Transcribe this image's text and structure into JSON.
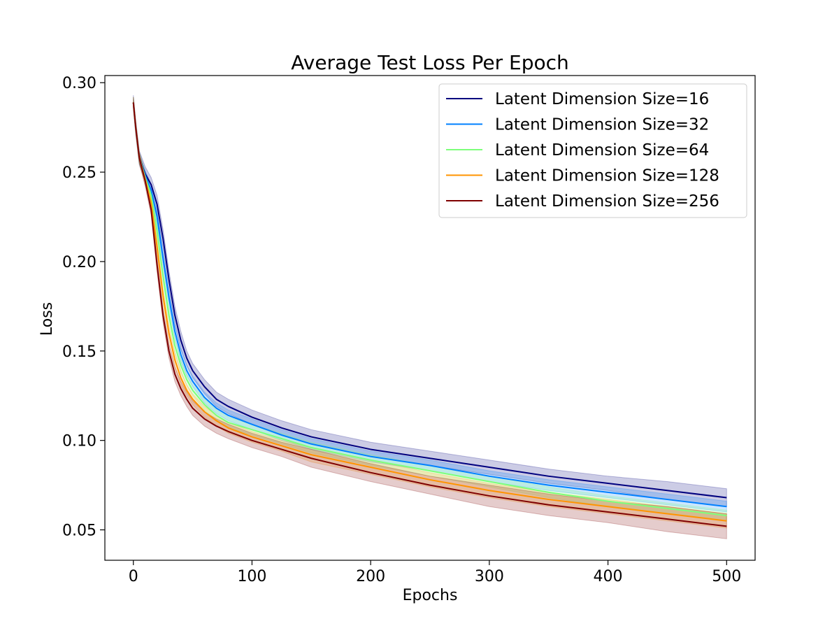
{
  "chart_data": {
    "type": "line",
    "title": "Average Test Loss Per Epoch",
    "xlabel": "Epochs",
    "ylabel": "Loss",
    "xlim": [
      -24,
      524
    ],
    "ylim": [
      0.033,
      0.304
    ],
    "xticks": [
      0,
      100,
      200,
      300,
      400,
      500
    ],
    "xtick_labels": [
      "0",
      "100",
      "200",
      "300",
      "400",
      "500"
    ],
    "yticks": [
      0.05,
      0.1,
      0.15,
      0.2,
      0.25,
      0.3
    ],
    "ytick_labels": [
      "0.05",
      "0.10",
      "0.15",
      "0.20",
      "0.25",
      "0.30"
    ],
    "grid": false,
    "legend_position": "top-right",
    "band": "shaded ±1 std region around each mean line",
    "x": [
      0,
      2,
      5,
      10,
      15,
      20,
      25,
      30,
      35,
      40,
      45,
      50,
      60,
      70,
      80,
      100,
      125,
      150,
      200,
      250,
      300,
      350,
      400,
      450,
      500
    ],
    "series": [
      {
        "name": "Latent Dimension Size=16",
        "color": "#00007f",
        "values": [
          0.289,
          0.275,
          0.258,
          0.249,
          0.243,
          0.232,
          0.213,
          0.19,
          0.17,
          0.156,
          0.146,
          0.139,
          0.13,
          0.123,
          0.119,
          0.113,
          0.107,
          0.102,
          0.095,
          0.09,
          0.085,
          0.08,
          0.076,
          0.072,
          0.068
        ],
        "band": [
          0.004,
          0.004,
          0.004,
          0.004,
          0.004,
          0.005,
          0.005,
          0.005,
          0.005,
          0.005,
          0.004,
          0.004,
          0.004,
          0.004,
          0.004,
          0.004,
          0.004,
          0.004,
          0.004,
          0.004,
          0.004,
          0.004,
          0.004,
          0.005,
          0.005
        ]
      },
      {
        "name": "Latent Dimension Size=32",
        "color": "#0080ff",
        "values": [
          0.289,
          0.275,
          0.258,
          0.248,
          0.24,
          0.225,
          0.202,
          0.18,
          0.161,
          0.148,
          0.139,
          0.133,
          0.124,
          0.118,
          0.114,
          0.109,
          0.103,
          0.098,
          0.091,
          0.086,
          0.08,
          0.075,
          0.071,
          0.067,
          0.063
        ],
        "band": [
          0.003,
          0.003,
          0.003,
          0.003,
          0.003,
          0.004,
          0.004,
          0.004,
          0.004,
          0.004,
          0.003,
          0.003,
          0.003,
          0.003,
          0.003,
          0.003,
          0.003,
          0.003,
          0.003,
          0.003,
          0.003,
          0.003,
          0.003,
          0.003,
          0.003
        ]
      },
      {
        "name": "Latent Dimension Size=64",
        "color": "#7dff7a",
        "values": [
          0.289,
          0.275,
          0.258,
          0.247,
          0.237,
          0.217,
          0.192,
          0.17,
          0.153,
          0.142,
          0.134,
          0.128,
          0.12,
          0.114,
          0.11,
          0.106,
          0.101,
          0.096,
          0.089,
          0.083,
          0.077,
          0.071,
          0.066,
          0.062,
          0.058
        ],
        "band": [
          0.003,
          0.003,
          0.003,
          0.003,
          0.003,
          0.004,
          0.004,
          0.004,
          0.004,
          0.004,
          0.003,
          0.003,
          0.003,
          0.003,
          0.003,
          0.003,
          0.003,
          0.003,
          0.003,
          0.003,
          0.003,
          0.003,
          0.003,
          0.003,
          0.003
        ]
      },
      {
        "name": "Latent Dimension Size=128",
        "color": "#ff9400",
        "values": [
          0.289,
          0.275,
          0.258,
          0.246,
          0.233,
          0.208,
          0.181,
          0.16,
          0.145,
          0.135,
          0.128,
          0.123,
          0.116,
          0.111,
          0.107,
          0.102,
          0.097,
          0.092,
          0.085,
          0.078,
          0.072,
          0.067,
          0.063,
          0.059,
          0.055
        ],
        "band": [
          0.003,
          0.003,
          0.003,
          0.003,
          0.003,
          0.004,
          0.004,
          0.004,
          0.004,
          0.004,
          0.003,
          0.003,
          0.003,
          0.003,
          0.003,
          0.003,
          0.003,
          0.004,
          0.004,
          0.004,
          0.004,
          0.004,
          0.004,
          0.004,
          0.004
        ]
      },
      {
        "name": "Latent Dimension Size=256",
        "color": "#7f0000",
        "values": [
          0.289,
          0.275,
          0.258,
          0.245,
          0.229,
          0.198,
          0.17,
          0.15,
          0.137,
          0.129,
          0.123,
          0.118,
          0.112,
          0.108,
          0.105,
          0.1,
          0.095,
          0.09,
          0.082,
          0.075,
          0.069,
          0.064,
          0.06,
          0.056,
          0.052
        ],
        "band": [
          0.003,
          0.003,
          0.003,
          0.003,
          0.003,
          0.004,
          0.004,
          0.004,
          0.004,
          0.004,
          0.004,
          0.004,
          0.004,
          0.004,
          0.004,
          0.004,
          0.004,
          0.005,
          0.005,
          0.005,
          0.006,
          0.006,
          0.006,
          0.007,
          0.007
        ]
      }
    ]
  }
}
